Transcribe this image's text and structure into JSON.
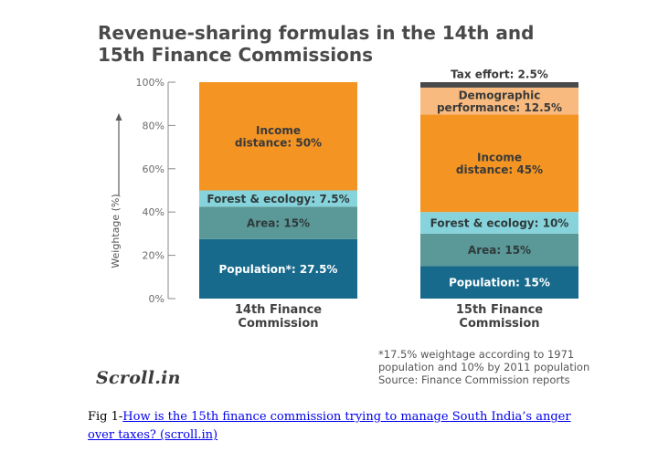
{
  "chart_data": {
    "type": "bar",
    "stacked": true,
    "title_lines": [
      "Revenue-sharing formulas in the 14th and",
      "15th Finance Commissions"
    ],
    "ylabel": "Weightage (%)",
    "ylim": [
      0,
      100
    ],
    "yticks": [
      0,
      20,
      40,
      60,
      80,
      100
    ],
    "ytick_labels": [
      "0%",
      "20%",
      "40%",
      "60%",
      "80%",
      "100%"
    ],
    "categories": [
      {
        "id": "14th",
        "label_lines": [
          "14th Finance",
          "Commission"
        ]
      },
      {
        "id": "15th",
        "label_lines": [
          "15th Finance",
          "Commission"
        ]
      }
    ],
    "stacks": [
      {
        "category": "14th",
        "segments": [
          {
            "name": "Population",
            "value": 27.5,
            "label_lines": [
              "Population*: 27.5%"
            ],
            "color": "#176a8c",
            "text_color": "#ffffff"
          },
          {
            "name": "Area",
            "value": 15,
            "label_lines": [
              "Area: 15%"
            ],
            "color": "#5b9898",
            "text_color": "#2f3a3a"
          },
          {
            "name": "Forest & ecology",
            "value": 7.5,
            "label_lines": [
              "Forest & ecology: 7.5%"
            ],
            "color": "#86d3dc",
            "text_color": "#2f3a3a"
          },
          {
            "name": "Income distance",
            "value": 50,
            "label_lines": [
              "Income",
              "distance: 50%"
            ],
            "color": "#f39423",
            "text_color": "#3a3a3a"
          }
        ]
      },
      {
        "category": "15th",
        "segments": [
          {
            "name": "Population",
            "value": 15,
            "label_lines": [
              "Population: 15%"
            ],
            "color": "#176a8c",
            "text_color": "#ffffff"
          },
          {
            "name": "Area",
            "value": 15,
            "label_lines": [
              "Area: 15%"
            ],
            "color": "#5b9898",
            "text_color": "#2f3a3a"
          },
          {
            "name": "Forest & ecology",
            "value": 10,
            "label_lines": [
              "Forest & ecology: 10%"
            ],
            "color": "#86d3dc",
            "text_color": "#2f3a3a"
          },
          {
            "name": "Income distance",
            "value": 45,
            "label_lines": [
              "Income",
              "distance: 45%"
            ],
            "color": "#f39423",
            "text_color": "#3a3a3a"
          },
          {
            "name": "Demographic performance",
            "value": 12.5,
            "label_lines": [
              "Demographic",
              "performance: 12.5%"
            ],
            "color": "#f8ba7e",
            "text_color": "#3a3a3a"
          },
          {
            "name": "Tax effort",
            "value": 2.5,
            "label_lines": [
              "Tax effort: 2.5%"
            ],
            "color": "#4a4a4a",
            "text_color": "#3a3a3a",
            "label_outside": true
          }
        ]
      }
    ],
    "footnote_lines": [
      "*17.5% weightage according to 1971",
      "population and 10% by 2011 population",
      "Source: Finance Commission reports"
    ]
  },
  "brand": {
    "logo_text": "Scroll.in"
  },
  "caption": {
    "prefix": "Fig 1-",
    "link_text": "How is the 15th finance commission trying to manage South India’s anger over taxes? (scroll.in)"
  }
}
